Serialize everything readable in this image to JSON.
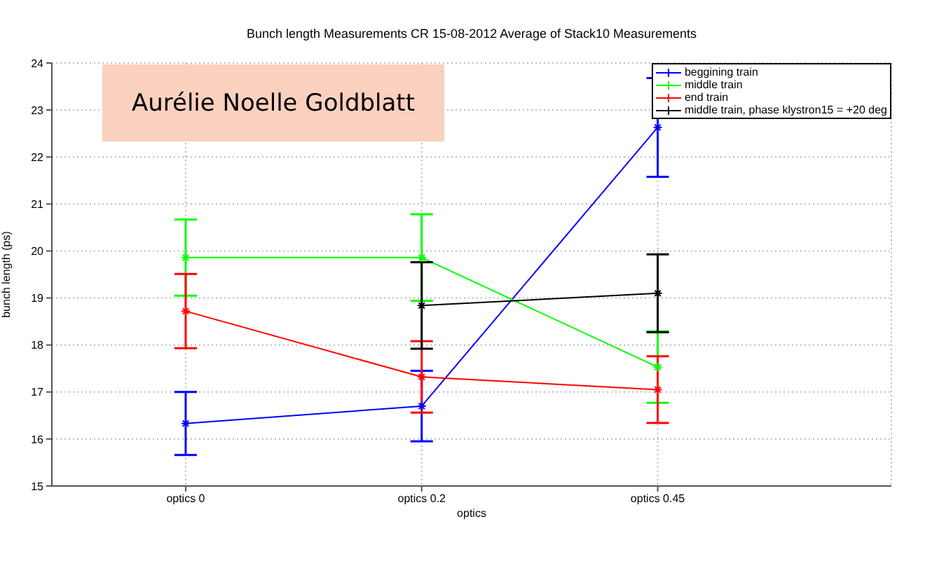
{
  "chart_data": {
    "type": "line",
    "title": "Bunch length Measurements CR 15-08-2012 Average of Stack10 Measurements",
    "xlabel": "optics",
    "ylabel": "bunch length (ps)",
    "categories": [
      "optics 0",
      "optics 0.2",
      "optics 0.45"
    ],
    "series": [
      {
        "name": "beggining train",
        "color": "#0000ff",
        "values": [
          16.33,
          16.7,
          22.63
        ],
        "errors": [
          0.67,
          0.75,
          1.05
        ]
      },
      {
        "name": "middle train",
        "color": "#00ff00",
        "values": [
          19.86,
          19.86,
          17.53
        ],
        "errors": [
          0.81,
          0.92,
          0.76
        ]
      },
      {
        "name": "end train",
        "color": "#ff0000",
        "values": [
          18.72,
          17.32,
          17.05
        ],
        "errors": [
          0.79,
          0.76,
          0.71
        ]
      },
      {
        "name": "middle train, phase klystron15 = +20 deg",
        "color": "#000000",
        "values": [
          null,
          18.84,
          19.1
        ],
        "errors": [
          null,
          0.92,
          0.83
        ]
      }
    ],
    "ylim": [
      15,
      24
    ],
    "yticks": [
      15,
      16,
      17,
      18,
      19,
      20,
      21,
      22,
      23,
      24
    ],
    "grid": true,
    "legend": "top right",
    "marker": "cross",
    "line_style": "solid",
    "annotations": [
      "Aurélie Noelle Goldblatt"
    ]
  }
}
